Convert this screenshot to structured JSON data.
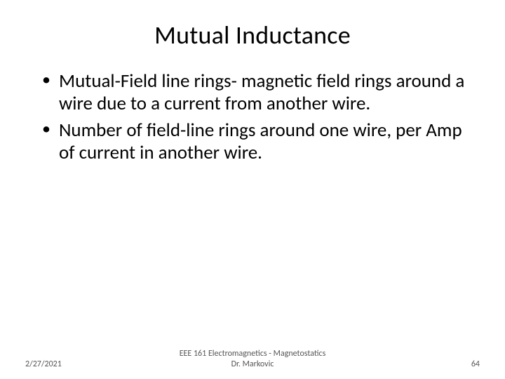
{
  "slide": {
    "title": "Mutual Inductance",
    "bullets": [
      "Mutual-Field line rings- magnetic field rings around a wire due to a current from another wire.",
      "Number of field-line rings around one wire, per Amp of current in another wire."
    ],
    "footer": {
      "date": "2/27/2021",
      "course_line1": "EEE 161 Electromagnetics - Magnetostatics",
      "course_line2": "Dr. Markovic",
      "page_number": "64"
    },
    "style": {
      "background_color": "#ffffff",
      "title_fontsize": 36,
      "body_fontsize": 27,
      "footer_fontsize": 12,
      "text_color": "#000000",
      "footer_color": "#555555"
    }
  }
}
